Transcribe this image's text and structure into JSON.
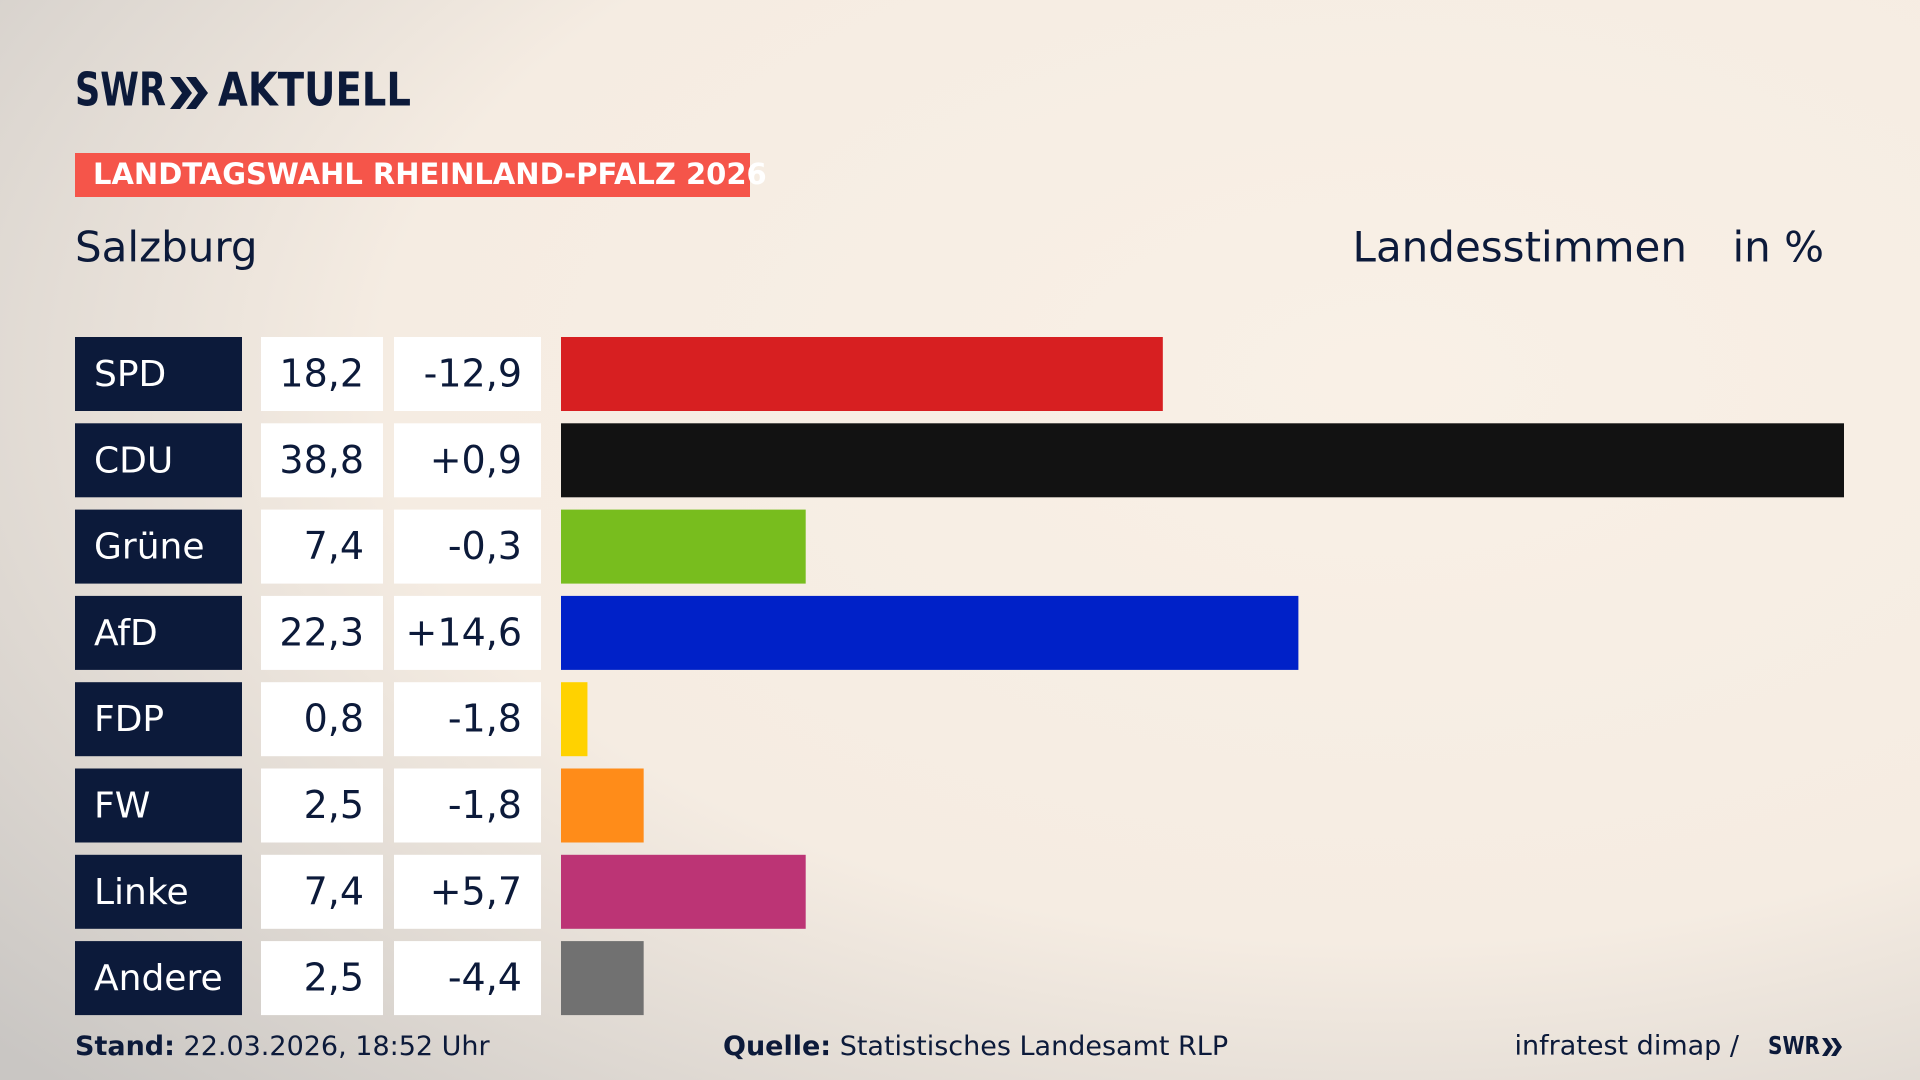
{
  "chart_data": {
    "type": "bar",
    "brand": "SWR",
    "brand_sub": "AKTUELL",
    "tag": "LANDTAGSWAHL RHEINLAND-PFALZ 2026",
    "title": "Salzburg",
    "value_heading": "Landesstimmen",
    "unit_heading": "in %",
    "categories": [
      "SPD",
      "CDU",
      "Grüne",
      "AfD",
      "FDP",
      "FW",
      "Linke",
      "Andere"
    ],
    "values": [
      18.2,
      38.8,
      7.4,
      22.3,
      0.8,
      2.5,
      7.4,
      2.5
    ],
    "value_labels": [
      "18,2",
      "38,8",
      "7,4",
      "22,3",
      "0,8",
      "2,5",
      "7,4",
      "2,5"
    ],
    "changes": [
      "-12,9",
      "+0,9",
      "-0,3",
      "+14,6",
      "-1,8",
      "-1,8",
      "+5,7",
      "-4,4"
    ],
    "colors": [
      "#d71f21",
      "#121212",
      "#78bd1e",
      "#0021c8",
      "#ffd200",
      "#ff8c19",
      "#bc3475",
      "#717171"
    ],
    "xlim": [
      0,
      38.8
    ],
    "footer": {
      "stand_label": "Stand:",
      "stand": "22.03.2026, 18:52 Uhr",
      "source_label": "Quelle:",
      "source": "Statistisches Landesamt RLP",
      "credit": "infratest dimap /",
      "credit_brand": "SWR"
    }
  }
}
